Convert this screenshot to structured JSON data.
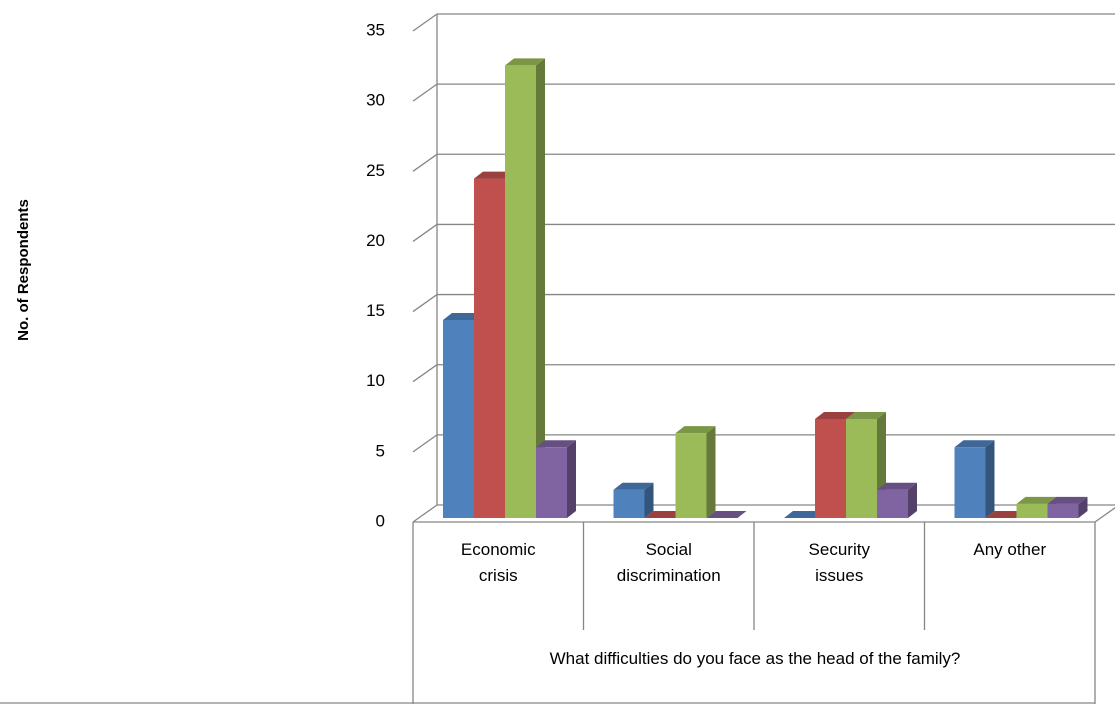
{
  "chart_data": {
    "type": "bar3d",
    "ylabel": "No. of Respondents",
    "xlabel": "What difficulties do you face as the head of the family?",
    "categories": [
      "Economic crisis",
      "Social discrimination",
      "Security issues",
      "Any other"
    ],
    "series": [
      {
        "color": "#4f81bd",
        "values": [
          14,
          2,
          0,
          5
        ]
      },
      {
        "color": "#c0504d",
        "values": [
          24,
          0,
          7,
          0
        ]
      },
      {
        "color": "#9bbb59",
        "values": [
          32,
          6,
          7,
          1
        ]
      },
      {
        "color": "#8064a2",
        "values": [
          5,
          0,
          2,
          1
        ]
      }
    ],
    "ylim": [
      0,
      35
    ],
    "yticks": [
      0,
      5,
      10,
      15,
      20,
      25,
      30,
      35
    ],
    "grid": true
  }
}
